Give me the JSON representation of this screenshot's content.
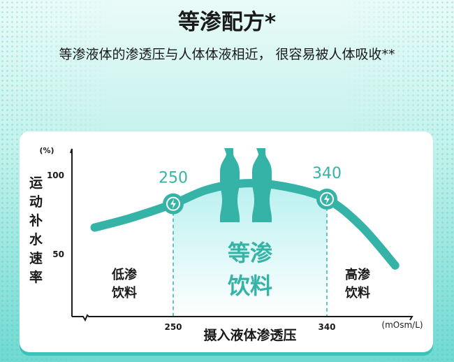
{
  "header": {
    "title": "等渗配方*",
    "subtitle": "等渗液体的渗透压与人体体液相近， 很容易被人体吸收**"
  },
  "colors": {
    "accent": "#35b3a6",
    "region_fill": "#c8f3f2",
    "text": "#1a1a1a"
  },
  "chart_data": {
    "type": "line",
    "ylabel": "运动补水速率",
    "yunit": "(%)",
    "xlabel": "摄入液体渗透压",
    "xunit": "(mOsm/L)",
    "yticks": [
      {
        "value": 100,
        "label": "100"
      },
      {
        "value": 50,
        "label": "50"
      }
    ],
    "xticks": [
      {
        "value": 250,
        "label": "250"
      },
      {
        "value": 340,
        "label": "340"
      }
    ],
    "xlim": [
      195,
      395
    ],
    "ylim": [
      11,
      117
    ],
    "series": [
      {
        "x": [
          204,
          225,
          250,
          270,
          292,
          315,
          340,
          360,
          380
        ],
        "y": [
          67,
          73,
          82,
          91,
          95,
          93,
          85,
          68,
          43
        ]
      }
    ],
    "markers": [
      {
        "x": 250,
        "label": "250",
        "icon": "lightning-icon"
      },
      {
        "x": 340,
        "label": "340",
        "icon": "lightning-icon"
      }
    ],
    "regions": [
      {
        "label_lines": [
          "低渗",
          "饮料"
        ]
      },
      {
        "label_lines": [
          "等渗",
          "饮料"
        ]
      },
      {
        "label_lines": [
          "高渗",
          "饮料"
        ]
      }
    ]
  }
}
